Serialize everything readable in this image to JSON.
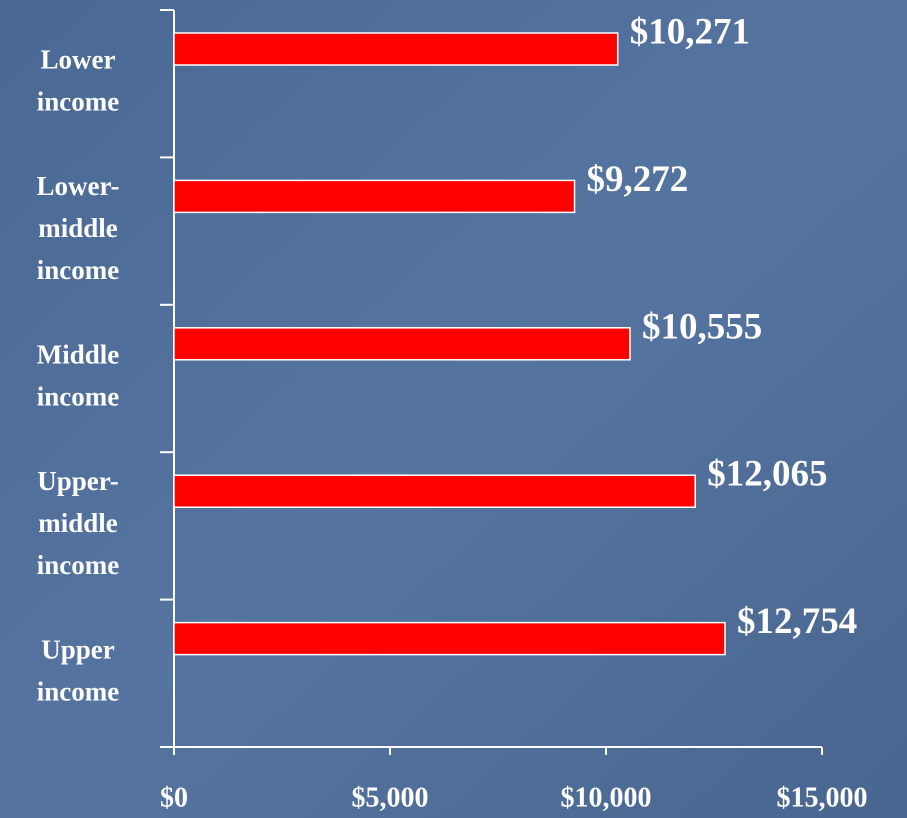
{
  "chart_data": {
    "type": "bar",
    "orientation": "horizontal",
    "categories": [
      "Lower income",
      "Lower-middle income",
      "Middle income",
      "Upper-middle income",
      "Upper income"
    ],
    "values": [
      10271,
      9272,
      10555,
      12065,
      12754
    ],
    "value_labels": [
      "$10,271",
      "$9,272",
      "$10,555",
      "$12,065",
      "$12,754"
    ],
    "color": "#ff0000",
    "xlim": [
      0,
      15000
    ],
    "xticks": [
      {
        "value": 0,
        "label": "$0"
      },
      {
        "value": 5000,
        "label": "$5,000"
      },
      {
        "value": 10000,
        "label": "$10,000"
      },
      {
        "value": 15000,
        "label": "$15,000"
      }
    ]
  }
}
